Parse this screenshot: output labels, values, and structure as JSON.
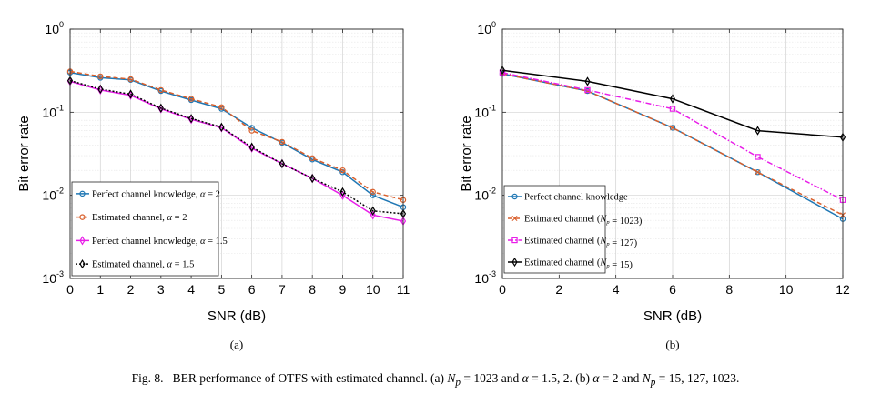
{
  "caption": {
    "label": "Fig. 8.",
    "text": "BER performance of OTFS with estimated channel. (a) N_p = 1023 and α = 1.5, 2. (b) α = 2 and N_p = 15, 127, 1023."
  },
  "chart_data": [
    {
      "type": "line",
      "panel_label": "(a)",
      "xlabel": "SNR (dB)",
      "ylabel": "Bit error rate",
      "yscale": "log",
      "xlim": [
        0,
        11
      ],
      "ylim": [
        0.001,
        1
      ],
      "grid": true,
      "x_ticks": [
        "0",
        "1",
        "2",
        "3",
        "4",
        "5",
        "6",
        "7",
        "8",
        "9",
        "10",
        "11"
      ],
      "y_ticks": [
        {
          "base": "10",
          "exp": "0"
        },
        {
          "base": "10",
          "exp": "-1"
        },
        {
          "base": "10",
          "exp": "-2"
        },
        {
          "base": "10",
          "exp": "-3"
        }
      ],
      "legend_position": "bottom-left",
      "x": [
        0,
        1,
        2,
        3,
        4,
        5,
        6,
        7,
        8,
        9,
        10,
        11
      ],
      "series": [
        {
          "name": "Perfect channel knowledge, α = 2",
          "color": "#1f77b4",
          "dash": "solid",
          "marker": "circle",
          "values": [
            0.3,
            0.26,
            0.245,
            0.18,
            0.14,
            0.11,
            0.065,
            0.043,
            0.027,
            0.019,
            0.01,
            0.0072
          ]
        },
        {
          "name": "Estimated channel, α = 2",
          "color": "#d95f2b",
          "dash": "dash",
          "marker": "circle",
          "values": [
            0.31,
            0.27,
            0.25,
            0.185,
            0.145,
            0.115,
            0.06,
            0.044,
            0.028,
            0.02,
            0.011,
            0.0088
          ]
        },
        {
          "name": "Perfect channel knowledge, α = 1.5",
          "color": "#e81ee8",
          "dash": "solid",
          "marker": "diamond",
          "values": [
            0.235,
            0.185,
            0.16,
            0.11,
            0.082,
            0.065,
            0.037,
            0.024,
            0.016,
            0.01,
            0.0058,
            0.0049
          ]
        },
        {
          "name": "Estimated channel, α = 1.5",
          "color": "#000000",
          "dash": "dot",
          "marker": "diamond",
          "values": [
            0.24,
            0.19,
            0.165,
            0.112,
            0.084,
            0.066,
            0.038,
            0.024,
            0.016,
            0.011,
            0.0065,
            0.006
          ]
        }
      ]
    },
    {
      "type": "line",
      "panel_label": "(b)",
      "xlabel": "SNR (dB)",
      "ylabel": "Bit error rate",
      "yscale": "log",
      "xlim": [
        0,
        12
      ],
      "ylim": [
        0.001,
        1
      ],
      "grid": true,
      "x_ticks": [
        "0",
        "2",
        "4",
        "6",
        "8",
        "10",
        "12"
      ],
      "y_ticks": [
        {
          "base": "10",
          "exp": "0"
        },
        {
          "base": "10",
          "exp": "-1"
        },
        {
          "base": "10",
          "exp": "-2"
        },
        {
          "base": "10",
          "exp": "-3"
        }
      ],
      "legend_position": "bottom-left",
      "x": [
        0,
        3,
        6,
        9,
        12
      ],
      "series": [
        {
          "name": "Perfect channel knowledge",
          "color": "#1f77b4",
          "dash": "solid",
          "marker": "circle",
          "values": [
            0.29,
            0.18,
            0.065,
            0.019,
            0.0052
          ]
        },
        {
          "name": "Estimated channel (N_p = 1023)",
          "color": "#d95f2b",
          "dash": "dash",
          "marker": "x",
          "values": [
            0.29,
            0.18,
            0.065,
            0.019,
            0.0058
          ]
        },
        {
          "name": "Estimated channel (N_p = 127)",
          "color": "#e81ee8",
          "dash": "dashdot",
          "marker": "square",
          "values": [
            0.3,
            0.185,
            0.11,
            0.029,
            0.0088
          ]
        },
        {
          "name": "Estimated channel (N_p = 15)",
          "color": "#000000",
          "dash": "solid",
          "marker": "diamond",
          "values": [
            0.32,
            0.235,
            0.145,
            0.06,
            0.05
          ]
        }
      ]
    }
  ]
}
